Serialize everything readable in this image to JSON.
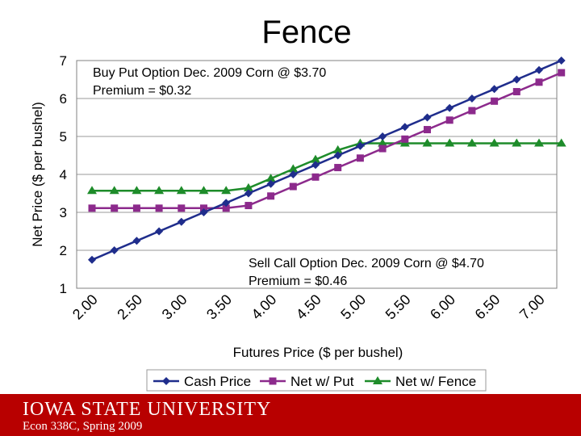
{
  "slide": {
    "title": "Fence",
    "university": "IOWA STATE UNIVERSITY",
    "course": "Econ 338C, Spring 2009"
  },
  "annotations": {
    "put_line1": "Buy Put Option Dec. 2009 Corn @ $3.70",
    "put_line2": "Premium = $0.32",
    "call_line1": "Sell Call Option Dec. 2009 Corn @ $4.70",
    "call_line2": "Premium = $0.46"
  },
  "chart_data": {
    "type": "line",
    "title": "Fence",
    "xlabel": "Futures Price ($ per bushel)",
    "ylabel": "Net Price ($ per bushel)",
    "ylim": [
      1,
      7
    ],
    "xlim": [
      2.0,
      7.0
    ],
    "yticks": [
      "1",
      "2",
      "3",
      "4",
      "5",
      "6",
      "7"
    ],
    "xticks": [
      "2.00",
      "2.50",
      "3.00",
      "3.50",
      "4.00",
      "4.50",
      "5.00",
      "5.50",
      "6.00",
      "6.50",
      "7.00"
    ],
    "x": [
      2.0,
      2.25,
      2.5,
      2.75,
      3.0,
      3.25,
      3.5,
      3.75,
      4.0,
      4.25,
      4.5,
      4.75,
      5.0,
      5.25,
      5.5,
      5.75,
      6.0,
      6.25,
      6.5,
      6.75,
      7.0,
      7.25
    ],
    "legend_position": "bottom",
    "series": [
      {
        "name": "Cash Price",
        "color": "#1f2d8c",
        "marker": "diamond",
        "values": [
          1.75,
          2.0,
          2.25,
          2.5,
          2.75,
          3.0,
          3.25,
          3.5,
          3.75,
          4.0,
          4.25,
          4.5,
          4.75,
          5.0,
          5.25,
          5.5,
          5.75,
          6.0,
          6.25,
          6.5,
          6.75,
          7.0
        ]
      },
      {
        "name": "Net w/ Put",
        "color": "#8c2a8c",
        "marker": "square",
        "values": [
          3.11,
          3.11,
          3.11,
          3.11,
          3.11,
          3.11,
          3.11,
          3.18,
          3.43,
          3.68,
          3.93,
          4.18,
          4.43,
          4.68,
          4.93,
          5.18,
          5.43,
          5.68,
          5.93,
          6.18,
          6.43,
          6.68
        ]
      },
      {
        "name": "Net w/ Fence",
        "color": "#1e8c2a",
        "marker": "triangle",
        "values": [
          3.57,
          3.57,
          3.57,
          3.57,
          3.57,
          3.57,
          3.57,
          3.64,
          3.89,
          4.14,
          4.39,
          4.64,
          4.82,
          4.82,
          4.82,
          4.82,
          4.82,
          4.82,
          4.82,
          4.82,
          4.82,
          4.82
        ]
      }
    ]
  }
}
